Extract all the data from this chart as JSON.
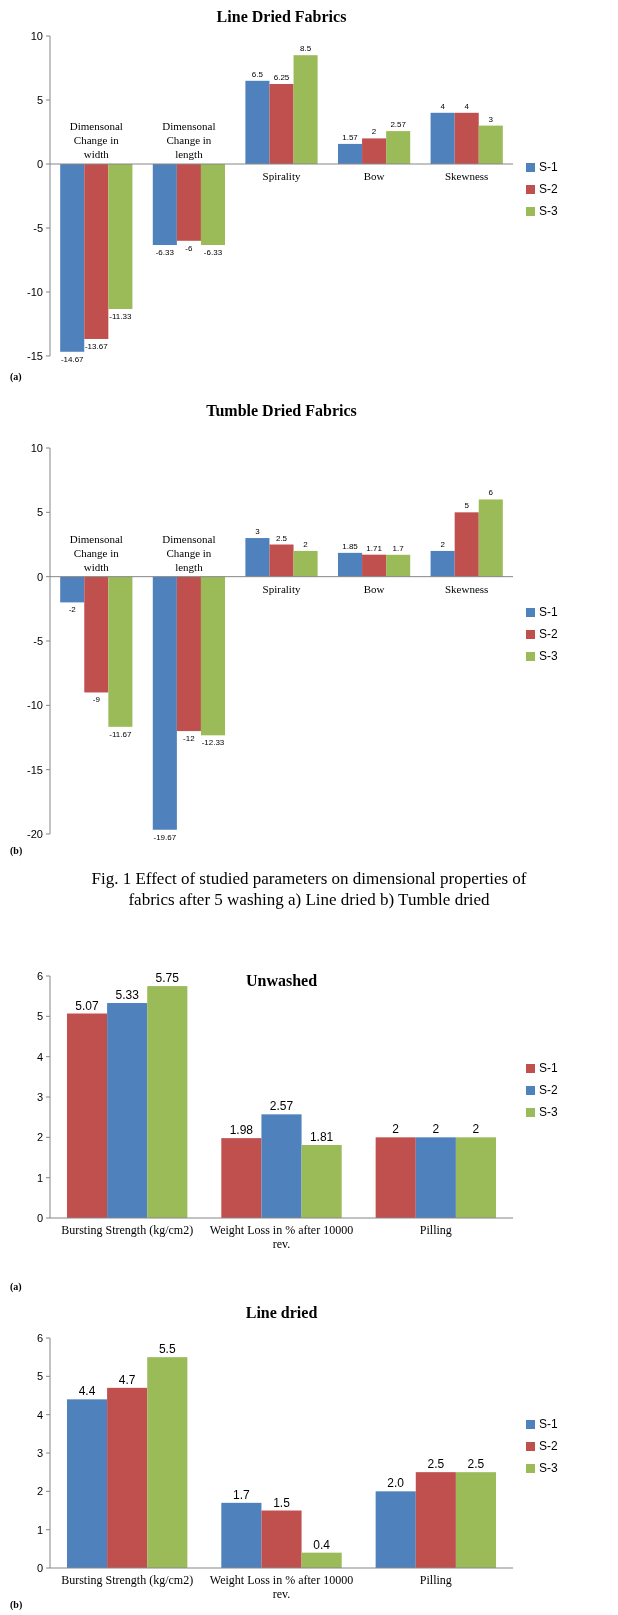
{
  "chart_data": [
    {
      "type": "bar",
      "title": "Line Dried Fabrics",
      "categories": [
        "Dimensonal Change in width",
        "Dimensonal Change in length",
        "Spirality",
        "Bow",
        "Skewness"
      ],
      "series": [
        {
          "name": "S-1",
          "color": "#4f81bd",
          "values": [
            -14.67,
            -6.33,
            6.5,
            1.57,
            4
          ]
        },
        {
          "name": "S-2",
          "color": "#c0504d",
          "values": [
            -13.67,
            -6,
            6.25,
            2,
            4
          ]
        },
        {
          "name": "S-3",
          "color": "#9bbb59",
          "values": [
            -11.33,
            -6.33,
            8.5,
            2.57,
            3
          ]
        }
      ],
      "ylim": [
        -15,
        10
      ],
      "yticks": [
        -15,
        -10,
        -5,
        0,
        5,
        10
      ],
      "data_labels": true,
      "legend": "right",
      "annotations": [
        "(a)"
      ]
    },
    {
      "type": "bar",
      "title": "Tumble Dried Fabrics",
      "categories": [
        "Dimensonal Change in width",
        "Dimensonal Change in length",
        "Spirality",
        "Bow",
        "Skewness"
      ],
      "series": [
        {
          "name": "S-1",
          "color": "#4f81bd",
          "values": [
            -2,
            -19.67,
            3,
            1.85,
            2
          ]
        },
        {
          "name": "S-2",
          "color": "#c0504d",
          "values": [
            -9,
            -12,
            2.5,
            1.71,
            5
          ]
        },
        {
          "name": "S-3",
          "color": "#9bbb59",
          "values": [
            -11.67,
            -12.33,
            2,
            1.7,
            6
          ]
        }
      ],
      "ylim": [
        -20,
        10
      ],
      "yticks": [
        -20,
        -15,
        -10,
        -5,
        0,
        5,
        10
      ],
      "data_labels": true,
      "legend": "right",
      "annotations": [
        "(b)",
        "Fig. 1 Effect of studied parameters on dimensional properties of fabrics after 5 washing a) Line dried b) Tumble dried"
      ]
    },
    {
      "type": "bar",
      "title": "Unwashed",
      "categories": [
        "Bursting Strength (kg/cm2)",
        "Weight Loss in % after 10000 rev.",
        "Pilling"
      ],
      "series": [
        {
          "name": "S-1",
          "color": "#c0504d",
          "values": [
            5.07,
            1.98,
            2
          ]
        },
        {
          "name": "S-2",
          "color": "#4f81bd",
          "values": [
            5.33,
            2.57,
            2
          ]
        },
        {
          "name": "S-3",
          "color": "#9bbb59",
          "values": [
            5.75,
            1.81,
            2
          ]
        }
      ],
      "ylim": [
        0,
        6
      ],
      "yticks": [
        0,
        1,
        2,
        3,
        4,
        5,
        6
      ],
      "data_labels": true,
      "legend": "right",
      "annotations": [
        "(a)"
      ]
    },
    {
      "type": "bar",
      "title": "Line dried",
      "categories": [
        "Bursting Strength (kg/cm2)",
        "Weight Loss in % after 10000 rev.",
        "Pilling"
      ],
      "series": [
        {
          "name": "S-1",
          "color": "#4f81bd",
          "values": [
            4.4,
            1.7,
            2.0
          ],
          "value_labels": [
            "4.4",
            "1.7",
            "2.0"
          ]
        },
        {
          "name": "S-2",
          "color": "#c0504d",
          "values": [
            4.7,
            1.5,
            2.5
          ],
          "value_labels": [
            "4.7",
            "1.5",
            "2.5"
          ]
        },
        {
          "name": "S-3",
          "color": "#9bbb59",
          "values": [
            5.5,
            0.4,
            2.5
          ],
          "value_labels": [
            "5.5",
            "0.4",
            "2.5"
          ]
        }
      ],
      "ylim": [
        0,
        6
      ],
      "yticks": [
        0,
        1,
        2,
        3,
        4,
        5,
        6
      ],
      "legend": "right",
      "annotations": [
        "(b)"
      ]
    }
  ]
}
